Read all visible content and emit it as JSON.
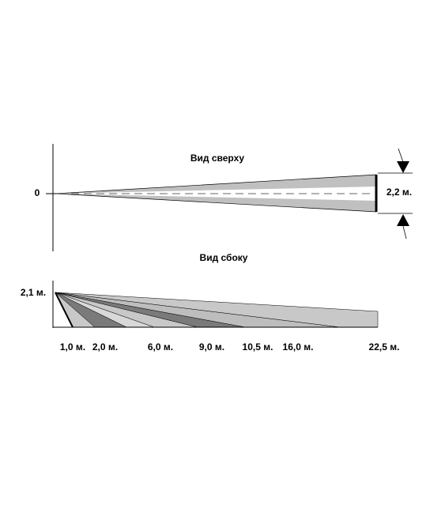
{
  "top_view": {
    "title": "Вид сверху",
    "origin_label": "0",
    "width_label": "2,2 м."
  },
  "side_view": {
    "title": "Вид сбоку",
    "height_label": "2,1 м.",
    "distance_labels": [
      "1,0 м.",
      "2,0 м.",
      "6,0 м.",
      "9,0 м.",
      "10,5 м.",
      "16,0 м.",
      "22,5 м."
    ]
  }
}
